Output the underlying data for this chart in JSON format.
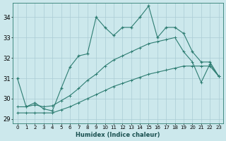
{
  "xlabel": "Humidex (Indice chaleur)",
  "background_color": "#cce8ec",
  "grid_color": "#aaccd4",
  "line_color": "#2e7d72",
  "xlim": [
    -0.5,
    23.5
  ],
  "ylim": [
    28.8,
    34.7
  ],
  "yticks": [
    29,
    30,
    31,
    32,
    33,
    34
  ],
  "xtick_labels": [
    "0",
    "1",
    "2",
    "3",
    "4",
    "5",
    "6",
    "7",
    "8",
    "9",
    "10",
    "11",
    "12",
    "13",
    "14",
    "15",
    "16",
    "17",
    "18",
    "19",
    "20",
    "21",
    "22",
    "23"
  ],
  "series1_x": [
    0,
    1,
    2,
    3,
    4,
    5,
    6,
    7,
    8,
    9,
    10,
    11,
    12,
    13,
    14,
    15,
    16,
    17,
    18,
    19,
    20,
    21,
    22,
    23
  ],
  "series1_y": [
    31.0,
    29.6,
    29.8,
    29.5,
    29.4,
    30.5,
    31.55,
    32.1,
    32.2,
    34.0,
    33.5,
    33.1,
    33.5,
    33.5,
    34.0,
    34.55,
    33.0,
    33.5,
    33.5,
    33.2,
    32.3,
    31.8,
    31.8,
    31.1
  ],
  "series2_x": [
    0,
    1,
    2,
    3,
    4,
    5,
    6,
    7,
    8,
    9,
    10,
    11,
    12,
    13,
    14,
    15,
    16,
    17,
    18,
    19,
    20,
    21,
    22,
    23
  ],
  "series2_y": [
    29.6,
    29.6,
    29.7,
    29.6,
    29.65,
    29.9,
    30.15,
    30.5,
    30.9,
    31.2,
    31.6,
    31.9,
    32.1,
    32.3,
    32.5,
    32.7,
    32.8,
    32.9,
    33.0,
    32.3,
    31.8,
    30.8,
    31.7,
    31.1
  ],
  "series3_x": [
    0,
    1,
    2,
    3,
    4,
    5,
    6,
    7,
    8,
    9,
    10,
    11,
    12,
    13,
    14,
    15,
    16,
    17,
    18,
    19,
    20,
    21,
    22,
    23
  ],
  "series3_y": [
    29.3,
    29.3,
    29.3,
    29.3,
    29.3,
    29.45,
    29.6,
    29.8,
    30.0,
    30.2,
    30.4,
    30.6,
    30.75,
    30.9,
    31.05,
    31.2,
    31.3,
    31.4,
    31.5,
    31.6,
    31.6,
    31.6,
    31.6,
    31.1
  ]
}
